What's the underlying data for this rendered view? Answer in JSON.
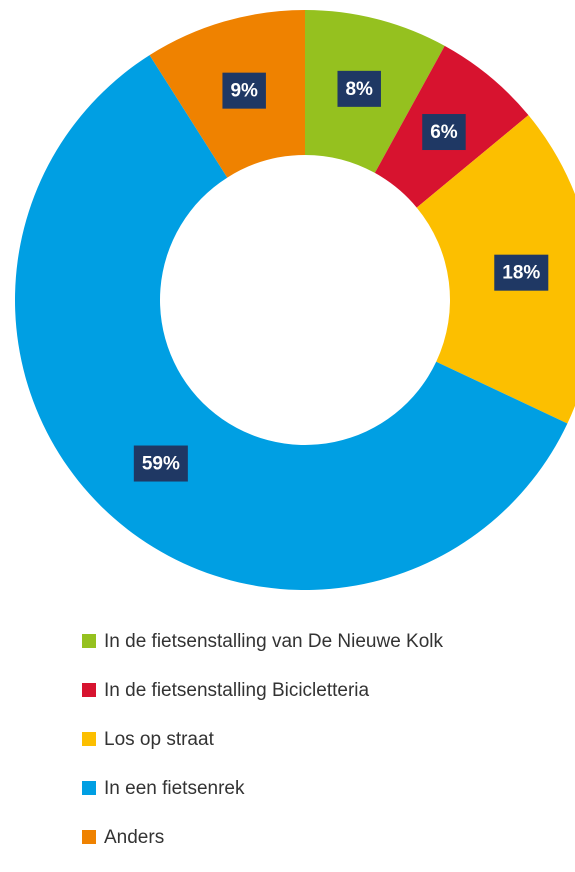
{
  "chart_data": {
    "type": "donut",
    "categories": [
      "In de fietsenstalling van De Nieuwe Kolk",
      "In de fietsenstalling Bicicletteria",
      "Los op straat",
      "In een fietsenrek",
      "Anders"
    ],
    "values": [
      8,
      6,
      18,
      59,
      9
    ],
    "value_labels": [
      "8%",
      "6%",
      "18%",
      "59%",
      "9%"
    ],
    "colors": [
      "#95c11f",
      "#d7132f",
      "#fcbf00",
      "#009fe3",
      "#ef8200"
    ],
    "legend": "bottom"
  }
}
